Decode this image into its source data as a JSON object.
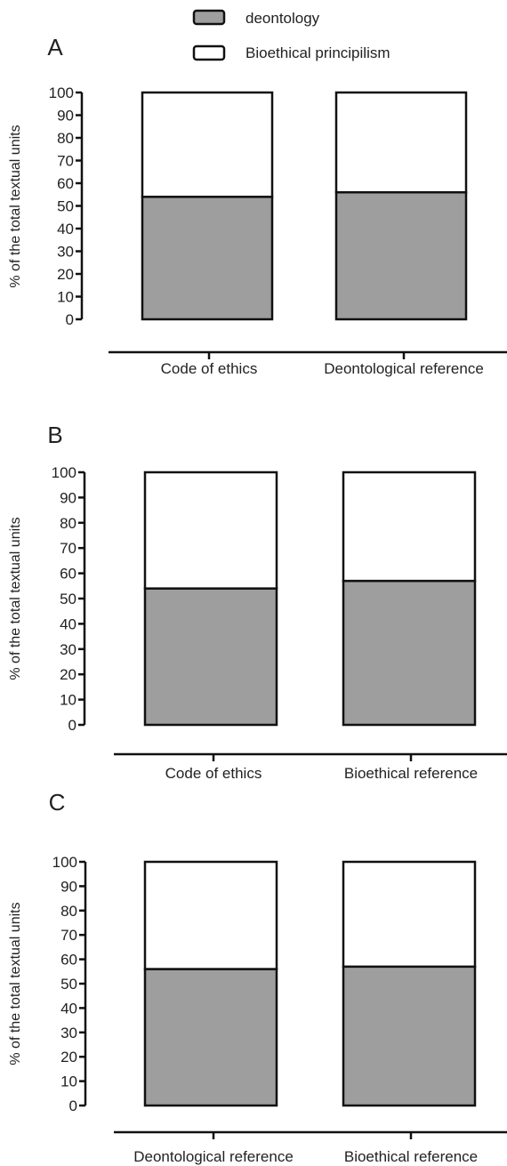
{
  "legend": {
    "items": [
      {
        "label": "deontology",
        "color": "#9e9e9e"
      },
      {
        "label": "Bioethical principilism",
        "color": "#ffffff"
      }
    ]
  },
  "chart_data": [
    {
      "type": "bar",
      "stacked": true,
      "panel": "A",
      "ylabel": "% of the total textual units",
      "ylim": [
        0,
        100
      ],
      "yticks": [
        0,
        10,
        20,
        30,
        40,
        50,
        60,
        70,
        80,
        90,
        100
      ],
      "categories": [
        "Code of ethics",
        "Deontological reference"
      ],
      "series": [
        {
          "name": "deontology",
          "values": [
            54,
            56
          ]
        },
        {
          "name": "Bioethical principilism",
          "values": [
            46,
            44
          ]
        }
      ]
    },
    {
      "type": "bar",
      "stacked": true,
      "panel": "B",
      "ylabel": "% of the total textual units",
      "ylim": [
        0,
        100
      ],
      "yticks": [
        0,
        10,
        20,
        30,
        40,
        50,
        60,
        70,
        80,
        90,
        100
      ],
      "categories": [
        "Code of ethics",
        "Bioethical reference"
      ],
      "series": [
        {
          "name": "deontology",
          "values": [
            54,
            57
          ]
        },
        {
          "name": "Bioethical principilism",
          "values": [
            46,
            43
          ]
        }
      ]
    },
    {
      "type": "bar",
      "stacked": true,
      "panel": "C",
      "ylabel": "% of the total textual units",
      "ylim": [
        0,
        100
      ],
      "yticks": [
        0,
        10,
        20,
        30,
        40,
        50,
        60,
        70,
        80,
        90,
        100
      ],
      "categories": [
        "Deontological reference",
        "Bioethical reference"
      ],
      "series": [
        {
          "name": "deontology",
          "values": [
            56,
            57
          ]
        },
        {
          "name": "Bioethical principilism",
          "values": [
            44,
            43
          ]
        }
      ]
    }
  ]
}
